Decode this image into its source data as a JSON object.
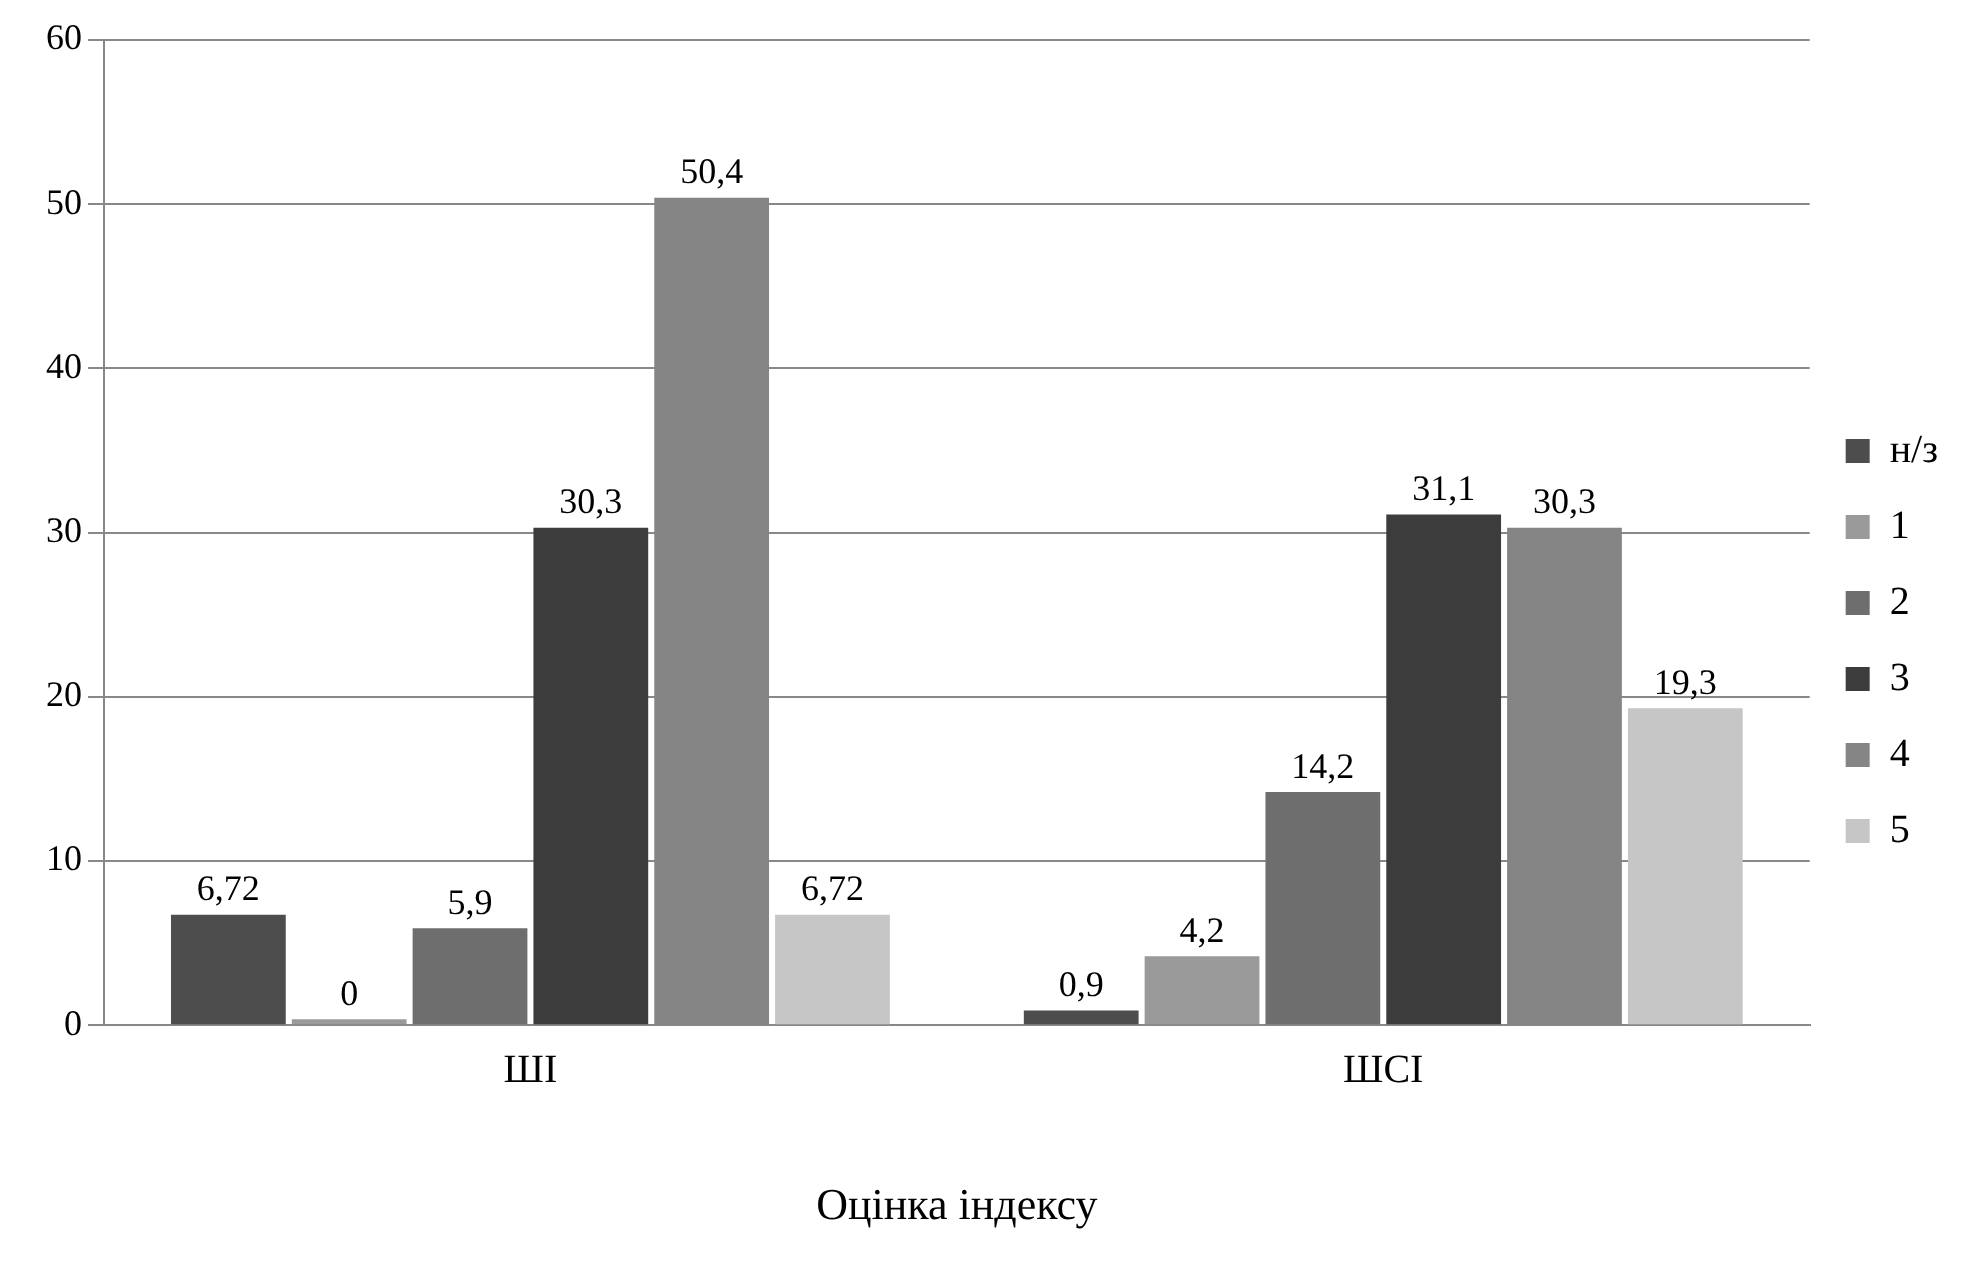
{
  "chart_data": {
    "type": "bar",
    "xlabel": "Оцінка індексу",
    "categories": [
      "ШІ",
      "ШСІ"
    ],
    "series": [
      {
        "name": "н/з",
        "color": "#4d4d4d",
        "values": [
          6.72,
          0.9
        ],
        "value_labels": [
          "6,72",
          "0,9"
        ]
      },
      {
        "name": "1",
        "color": "#9a9a9a",
        "values": [
          0,
          4.2
        ],
        "value_labels": [
          "0",
          "4,2"
        ]
      },
      {
        "name": "2",
        "color": "#6e6e6e",
        "values": [
          5.9,
          14.2
        ],
        "value_labels": [
          "5,9",
          "14,2"
        ]
      },
      {
        "name": "3",
        "color": "#3c3c3c",
        "values": [
          30.3,
          31.1
        ],
        "value_labels": [
          "30,3",
          "31,1"
        ]
      },
      {
        "name": "4",
        "color": "#858585",
        "values": [
          50.4,
          30.3
        ],
        "value_labels": [
          "50,4",
          "30,3"
        ]
      },
      {
        "name": "5",
        "color": "#c6c6c6",
        "values": [
          6.72,
          19.3
        ],
        "value_labels": [
          "6,72",
          "19,3"
        ]
      }
    ],
    "ylim": [
      0,
      60
    ],
    "yticks": [
      0,
      10,
      20,
      30,
      40,
      50,
      60
    ],
    "grid": "y",
    "legend": "right"
  }
}
